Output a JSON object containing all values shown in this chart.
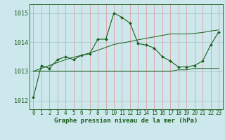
{
  "title": "Graphe pression niveau de la mer (hPa)",
  "bg_color": "#cce8ec",
  "line_color": "#1a5c1a",
  "ylim": [
    1011.7,
    1015.3
  ],
  "yticks": [
    1012,
    1013,
    1014,
    1015
  ],
  "xlim": [
    -0.5,
    23.5
  ],
  "xticks": [
    0,
    1,
    2,
    3,
    4,
    5,
    6,
    7,
    8,
    9,
    10,
    11,
    12,
    13,
    14,
    15,
    16,
    17,
    18,
    19,
    20,
    21,
    22,
    23
  ],
  "main_series": [
    1012.1,
    1013.2,
    1013.1,
    1013.4,
    1013.5,
    1013.4,
    1013.55,
    1013.6,
    1014.1,
    1014.1,
    1015.0,
    1014.85,
    1014.65,
    1013.95,
    1013.9,
    1013.8,
    1013.5,
    1013.35,
    1013.15,
    1013.15,
    1013.2,
    1013.35,
    1013.9,
    1014.35
  ],
  "min_series": [
    1013.0,
    1013.0,
    1013.0,
    1013.0,
    1013.0,
    1013.0,
    1013.0,
    1013.0,
    1013.0,
    1013.0,
    1013.0,
    1013.0,
    1013.0,
    1013.0,
    1013.0,
    1013.0,
    1013.0,
    1013.0,
    1013.05,
    1013.05,
    1013.1,
    1013.1,
    1013.1,
    1013.1
  ],
  "max_series": [
    1013.0,
    1013.1,
    1013.2,
    1013.3,
    1013.4,
    1013.48,
    1013.55,
    1013.63,
    1013.72,
    1013.82,
    1013.92,
    1013.97,
    1014.02,
    1014.08,
    1014.13,
    1014.18,
    1014.23,
    1014.28,
    1014.28,
    1014.28,
    1014.3,
    1014.33,
    1014.38,
    1014.42
  ],
  "hgrid_color": "#aacccc",
  "vgrid_color": "#e0a0a0",
  "xlabel_fontsize": 5.5,
  "ylabel_fontsize": 6,
  "title_fontsize": 6.5
}
